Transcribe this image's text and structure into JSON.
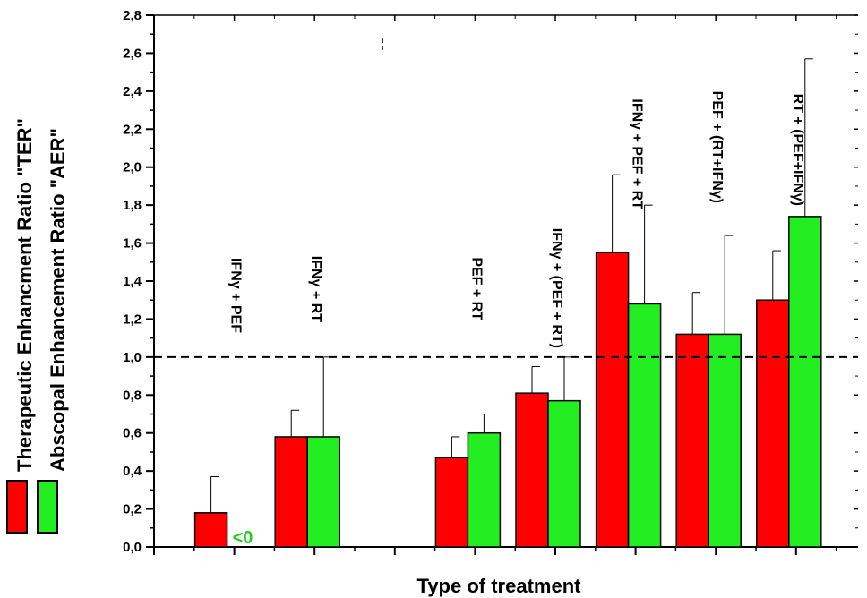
{
  "chart_data": {
    "type": "bar",
    "xlabel": "Type of treatment",
    "ylabel_ter": "Therapeutic Enhancment Ratio \"TER\"",
    "ylabel_aer": "Abscopal Enhancement Ratio   \"AER\"",
    "ylim": [
      0.0,
      2.8
    ],
    "yticks": [
      "0,0",
      "0,2",
      "0,4",
      "0,6",
      "0,8",
      "1,0",
      "1,2",
      "1,4",
      "1,6",
      "1,8",
      "2,0",
      "2,2",
      "2,4",
      "2,6",
      "2,8"
    ],
    "reference_line": 1.0,
    "grid": false,
    "legend": "left",
    "colors": {
      "TER": "#ff0000",
      "AER": "#22ee22",
      "note": "#22cc22"
    },
    "categories": [
      "IFNγ + PEF",
      "IFNγ + RT",
      "",
      "PEF + RT",
      "IFNγ + (PEF + RT)",
      "IFNγ + PEF + RT",
      "PEF + (RT+IFNγ)",
      "RT + (PEF+IFNγ)"
    ],
    "series": [
      {
        "key": "TER",
        "values": [
          0.18,
          0.58,
          null,
          0.47,
          0.81,
          1.55,
          1.12,
          1.3
        ],
        "errors": [
          0.19,
          0.14,
          null,
          0.11,
          0.14,
          0.41,
          0.22,
          0.26
        ]
      },
      {
        "key": "AER",
        "values": [
          null,
          0.58,
          null,
          0.6,
          0.77,
          1.28,
          1.12,
          1.74
        ],
        "errors": [
          null,
          0.42,
          null,
          0.1,
          0.23,
          0.52,
          0.52,
          0.83
        ]
      }
    ],
    "annotations": [
      {
        "text": "<0",
        "category": "IFNγ + PEF",
        "series": "AER"
      }
    ]
  }
}
